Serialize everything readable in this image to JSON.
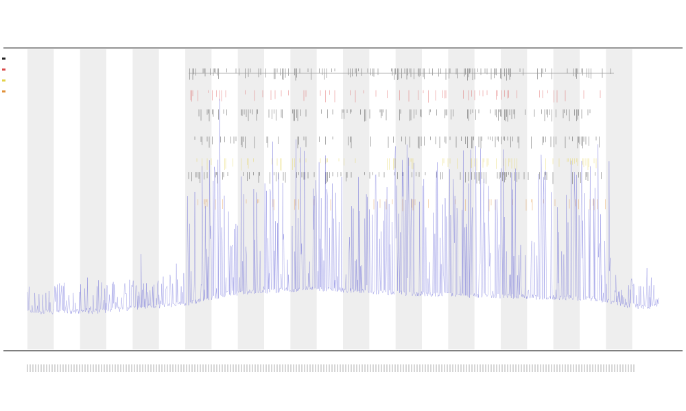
{
  "chart_data": {
    "type": "line",
    "title": "",
    "xlabel": "",
    "ylabel": "",
    "grid": false,
    "legend_position": "top-left",
    "colors": {
      "signal": "#5b5bd6",
      "band": "#eeeeee",
      "tick_dark": "#222222",
      "tick_red": "#d94a4a",
      "tick_yellow": "#e3d24a",
      "tick_orange": "#e0913a",
      "rule": "#999999"
    },
    "n_points": 1200,
    "baseline_profile": [
      [
        0,
        0.03
      ],
      [
        0.1,
        0.03
      ],
      [
        0.25,
        0.06
      ],
      [
        0.32,
        0.1
      ],
      [
        0.45,
        0.12
      ],
      [
        0.6,
        0.1
      ],
      [
        0.75,
        0.09
      ],
      [
        0.9,
        0.08
      ],
      [
        0.96,
        0.05
      ],
      [
        1.0,
        0.05
      ]
    ],
    "bursts": [
      0.27,
      0.3,
      0.35,
      0.39,
      0.43,
      0.47,
      0.51,
      0.55,
      0.59,
      0.62,
      0.66,
      0.7,
      0.715,
      0.75,
      0.76,
      0.82,
      0.87,
      0.89
    ],
    "bands": 12,
    "event_rows": [
      {
        "y": 0.05,
        "color": "#222222",
        "density": 0.55
      },
      {
        "y": 0.13,
        "color": "#d94a4a",
        "density": 0.25
      },
      {
        "y": 0.2,
        "color": "#222222",
        "density": 0.5
      },
      {
        "y": 0.3,
        "color": "#222222",
        "density": 0.4
      },
      {
        "y": 0.38,
        "color": "#e3d24a",
        "density": 0.35
      },
      {
        "y": 0.43,
        "color": "#222222",
        "density": 0.45
      },
      {
        "y": 0.53,
        "color": "#e0913a",
        "density": 0.3
      }
    ]
  }
}
